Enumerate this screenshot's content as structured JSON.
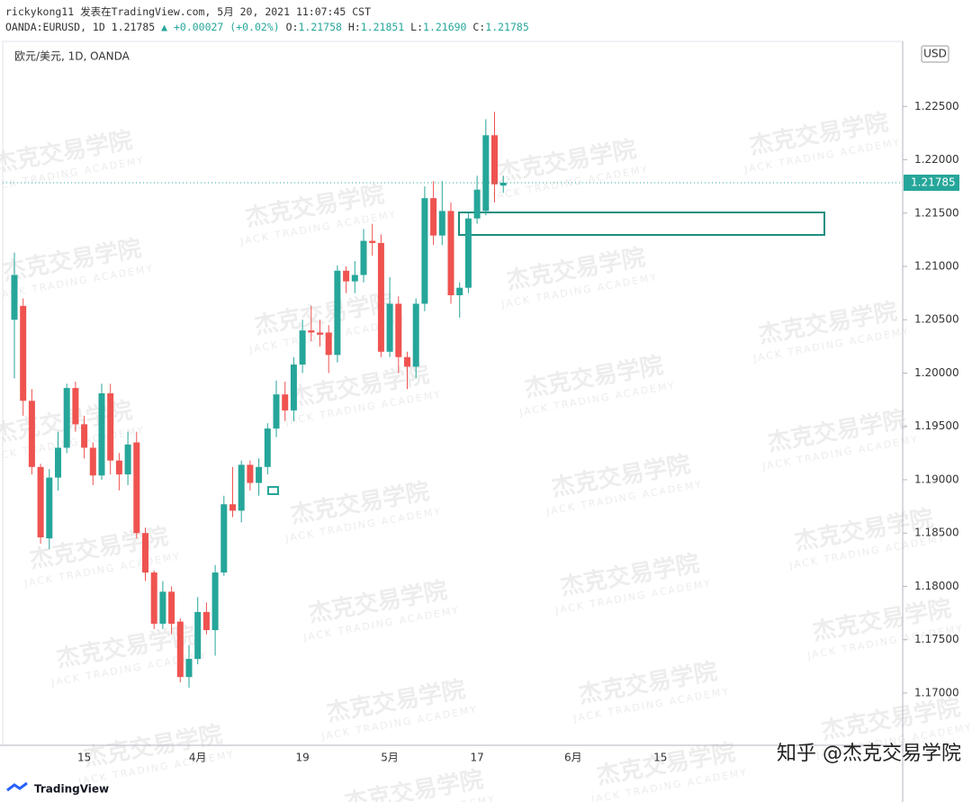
{
  "header": {
    "line1": "rickykong11 发表在TradingView.com, 5月 20, 2021 11:07:45 CST",
    "symbol": "OANDA:EURUSD, 1D",
    "last": "1.21785",
    "change": "▲ +0.00027 (+0.02%)",
    "o_label": "O:",
    "o": "1.21758",
    "h_label": "H:",
    "h": "1.21851",
    "l_label": "L:",
    "l": "1.21690",
    "c_label": "C:",
    "c": "1.21785"
  },
  "footer": {
    "brand": "TradingView",
    "credit": "知乎 @杰克交易学院"
  },
  "watermark": {
    "cn": "杰克交易学院",
    "en": "JACK TRADING ACADEMY"
  },
  "chart_data": {
    "type": "candlestick",
    "title": "欧元/美元, 1D, OANDA",
    "currency": "USD",
    "up_color": "#26a69a",
    "down_color": "#ef5350",
    "categories": [
      null,
      null,
      null,
      null,
      null,
      null,
      null,
      null,
      "15",
      null,
      null,
      null,
      null,
      null,
      null,
      null,
      null,
      null,
      null,
      null,
      null,
      "4月",
      null,
      null,
      null,
      null,
      null,
      null,
      null,
      null,
      null,
      null,
      null,
      "19",
      null,
      null,
      null,
      null,
      null,
      null,
      null,
      null,
      null,
      "5月",
      null,
      null,
      null,
      null,
      null,
      null,
      null,
      null,
      null,
      "17",
      null,
      null,
      null,
      null,
      null,
      null,
      null,
      null,
      null,
      null,
      "6月",
      null,
      null,
      null,
      null,
      null,
      null,
      null,
      null,
      null,
      "15",
      null,
      null,
      null,
      null,
      null,
      null,
      null,
      null,
      null,
      null,
      null,
      null,
      null,
      null,
      null,
      null,
      null,
      null,
      null,
      null,
      null,
      null,
      null,
      null,
      null,
      null,
      null
    ],
    "open": [
      1.205,
      1.2063,
      1.1974,
      1.1912,
      1.1845,
      1.1902,
      1.193,
      1.1986,
      1.1952,
      1.193,
      1.1904,
      1.1981,
      1.1918,
      1.1905,
      1.1935,
      1.185,
      1.1813,
      1.1765,
      1.1795,
      1.1767,
      1.1715,
      1.1732,
      1.1776,
      1.1759,
      1.1813,
      1.1877,
      1.1871,
      1.1914,
      1.1897,
      1.1912,
      1.1948,
      1.198,
      1.1965,
      1.2008,
      1.204,
      1.2038,
      1.2038,
      1.2017,
      1.2096,
      1.2086,
      1.2092,
      1.2124,
      1.2122,
      1.202,
      1.2065,
      1.2015,
      1.2006,
      1.2065,
      1.2164,
      1.2129,
      1.2152,
      1.2073,
      1.208,
      1.2145,
      1.2152,
      1.2223,
      1.21758,
      null,
      null,
      null,
      null,
      null,
      null,
      null,
      null,
      null,
      null,
      null,
      null,
      null,
      null,
      null,
      null,
      null,
      null,
      null,
      null,
      null,
      null,
      null,
      null,
      null,
      null,
      null,
      null,
      null,
      null,
      null,
      null,
      null,
      null,
      null,
      null,
      null,
      null,
      null,
      null,
      null,
      null,
      null,
      null,
      null
    ],
    "high": [
      1.2113,
      1.207,
      1.1985,
      1.1915,
      1.191,
      1.1945,
      1.199,
      1.1992,
      1.196,
      1.1935,
      1.199,
      1.199,
      1.1925,
      1.1945,
      1.1945,
      1.1855,
      1.1815,
      1.1805,
      1.18,
      1.177,
      1.1745,
      1.179,
      1.1785,
      1.182,
      1.1885,
      1.1912,
      1.1918,
      1.1918,
      1.192,
      1.1953,
      1.1993,
      1.1992,
      1.2015,
      1.205,
      1.2063,
      1.205,
      1.2045,
      1.2101,
      1.21,
      1.2105,
      1.2135,
      1.214,
      1.213,
      1.209,
      1.2072,
      1.202,
      1.207,
      1.2175,
      1.218,
      1.218,
      1.216,
      1.2085,
      1.215,
      1.2185,
      1.2238,
      1.2245,
      1.21851,
      null,
      null,
      null,
      null,
      null,
      null,
      null,
      null,
      null,
      null,
      null,
      null,
      null,
      null,
      null,
      null,
      null,
      null,
      null,
      null,
      null,
      null,
      null,
      null,
      null,
      null,
      null,
      null,
      null,
      null,
      null,
      null,
      null,
      null,
      null,
      null,
      null,
      null,
      null,
      null,
      null,
      null,
      null,
      null,
      null
    ],
    "low": [
      1.1995,
      1.196,
      1.1905,
      1.184,
      1.1835,
      1.189,
      1.1925,
      1.1945,
      1.192,
      1.1895,
      1.19,
      1.1905,
      1.189,
      1.1895,
      1.1845,
      1.1805,
      1.176,
      1.176,
      1.1755,
      1.171,
      1.1705,
      1.1727,
      1.1755,
      1.1735,
      1.181,
      1.1865,
      1.186,
      1.189,
      1.1885,
      1.1905,
      1.194,
      1.1955,
      1.1955,
      1.2,
      1.203,
      1.2025,
      1.2,
      1.201,
      1.2075,
      1.2075,
      1.2085,
      1.211,
      1.2015,
      1.2015,
      1.2,
      1.1985,
      1.1995,
      1.2058,
      1.212,
      1.212,
      1.2065,
      1.2052,
      1.2075,
      1.214,
      1.2148,
      1.216,
      1.2169,
      null,
      null,
      null,
      null,
      null,
      null,
      null,
      null,
      null,
      null,
      null,
      null,
      null,
      null,
      null,
      null,
      null,
      null,
      null,
      null,
      null,
      null,
      null,
      null,
      null,
      null,
      null,
      null,
      null,
      null,
      null,
      null,
      null,
      null,
      null,
      null,
      null,
      null,
      null,
      null,
      null,
      null,
      null,
      null,
      null
    ],
    "close": [
      1.2092,
      1.1974,
      1.1912,
      1.1846,
      1.1902,
      1.193,
      1.1986,
      1.1952,
      1.193,
      1.1904,
      1.1981,
      1.1918,
      1.1905,
      1.1933,
      1.185,
      1.1813,
      1.1765,
      1.1795,
      1.1765,
      1.1715,
      1.1732,
      1.1776,
      1.1759,
      1.1813,
      1.1877,
      1.1871,
      1.1914,
      1.1897,
      1.1912,
      1.1948,
      1.198,
      1.1965,
      1.2008,
      1.204,
      1.2038,
      1.2036,
      1.2017,
      1.2096,
      1.2086,
      1.2092,
      1.2124,
      1.2122,
      1.202,
      1.2065,
      1.2015,
      1.2006,
      1.2065,
      1.2164,
      1.2129,
      1.2152,
      1.2073,
      1.208,
      1.2145,
      1.2172,
      1.2223,
      1.2177,
      1.21785,
      null,
      null,
      null,
      null,
      null,
      null,
      null,
      null,
      null,
      null,
      null,
      null,
      null,
      null,
      null,
      null,
      null,
      null,
      null,
      null,
      null,
      null,
      null,
      null,
      null,
      null,
      null,
      null,
      null,
      null,
      null,
      null,
      null,
      null,
      null,
      null,
      null,
      null,
      null,
      null,
      null,
      null,
      null,
      null,
      null
    ],
    "ylim": [
      1.1651,
      1.2311
    ],
    "yticks": [
      {
        "value": 1.17,
        "label": "1.17000"
      },
      {
        "value": 1.175,
        "label": "1.17500"
      },
      {
        "value": 1.18,
        "label": "1.18000"
      },
      {
        "value": 1.185,
        "label": "1.18500"
      },
      {
        "value": 1.19,
        "label": "1.19000"
      },
      {
        "value": 1.195,
        "label": "1.19500"
      },
      {
        "value": 1.2,
        "label": "1.20000"
      },
      {
        "value": 1.205,
        "label": "1.20500"
      },
      {
        "value": 1.21,
        "label": "1.21000"
      },
      {
        "value": 1.215,
        "label": "1.21500"
      },
      {
        "value": 1.22,
        "label": "1.22000"
      },
      {
        "value": 1.225,
        "label": "1.22500"
      }
    ],
    "grid": false
  }
}
